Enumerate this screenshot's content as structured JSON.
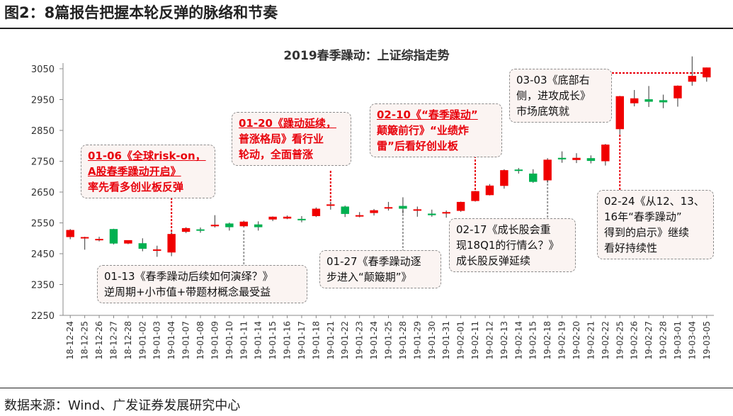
{
  "figure_title": "图2：8篇报告把握本轮反弹的脉络和节奏",
  "source": "数据来源：Wind、广发证券发展研究中心",
  "colors": {
    "up": "#f00000",
    "down": "#00b050",
    "leader": "#e8000b",
    "leader_gray": "#9a9a9a"
  },
  "annotations": [
    {
      "id": "a0106",
      "style": "red",
      "lines": [
        "01-06《全球risk-on，",
        "A股春季躁动开启》",
        "率先看多创业板反弹"
      ]
    },
    {
      "id": "a0113",
      "style": "normal",
      "lines": [
        "01-13《春季躁动后续如何演绎？》",
        "逆周期+小市值+带题材概念最受益"
      ]
    },
    {
      "id": "a0120",
      "style": "red",
      "lines": [
        "01-20《躁动延续，",
        "普涨格局》看行业",
        "轮动，全面普涨"
      ]
    },
    {
      "id": "a0127",
      "style": "normal",
      "lines": [
        "01-27《春季躁动逐",
        "步进入“颠簸期”》"
      ]
    },
    {
      "id": "a0210",
      "style": "red",
      "lines": [
        "02-10《“春季躁动”",
        "颠簸前行》“业绩炸",
        "雷”后看好创业板"
      ]
    },
    {
      "id": "a0217",
      "style": "normal",
      "lines": [
        "02-17《成长股会重",
        "现18Q1的行情么？》",
        "成长股反弹延续"
      ]
    },
    {
      "id": "a0224",
      "style": "normal",
      "lines": [
        "02-24《从12、13、",
        "16年“春季躁动”",
        "得到的启示》继续",
        "看好持续性"
      ]
    },
    {
      "id": "a0303",
      "style": "normal",
      "lines": [
        "03-03《底部右",
        "侧，进攻成长》",
        "市场底筑就"
      ]
    }
  ],
  "chart_data": {
    "type": "candlestick",
    "title": "2019春季躁动：上证综指走势",
    "xlabel": "",
    "ylabel": "",
    "ylim": [
      2250,
      3100
    ],
    "yticks": [
      2250,
      2350,
      2450,
      2550,
      2650,
      2750,
      2850,
      2950,
      3050
    ],
    "grid": false,
    "categories": [
      "18-12-24",
      "18-12-25",
      "18-12-26",
      "18-12-27",
      "18-12-28",
      "19-01-02",
      "19-01-03",
      "19-01-04",
      "19-01-07",
      "19-01-08",
      "19-01-09",
      "19-01-10",
      "19-01-11",
      "19-01-14",
      "19-01-15",
      "19-01-16",
      "19-01-17",
      "19-01-18",
      "19-01-21",
      "19-01-22",
      "19-01-23",
      "19-01-24",
      "19-01-25",
      "19-01-28",
      "19-01-29",
      "19-01-30",
      "19-01-31",
      "19-02-01",
      "19-02-11",
      "19-02-12",
      "19-02-13",
      "19-02-14",
      "19-02-15",
      "19-02-18",
      "19-02-19",
      "19-02-20",
      "19-02-21",
      "19-02-22",
      "19-02-25",
      "19-02-26",
      "19-02-27",
      "19-02-28",
      "19-03-01",
      "19-03-04",
      "19-03-05"
    ],
    "x_tick_labels": [
      "18-12-24",
      "18-12-25",
      "18-12-26",
      "18-12-27",
      "18-12-28",
      "19-01-02",
      "19-01-03",
      "19-01-04",
      "19-01-07",
      "19-01-08",
      "19-01-09",
      "19-01-10",
      "19-01-11",
      "19-01-14",
      "19-01-15",
      "19-01-16",
      "19-01-17",
      "19-01-18",
      "19-01-21",
      "19-01-22",
      "19-01-23",
      "19-01-24",
      "19-01-25",
      "19-01-28",
      "19-01-29",
      "19-01-30",
      "19-01-31",
      "19-02-01",
      "19-02-11",
      "19-02-12",
      "19-02-13",
      "19-02-14",
      "19-02-15",
      "19-02-18",
      "19-02-19",
      "19-02-20",
      "19-02-21",
      "19-02-22",
      "19-02-25",
      "19-02-26",
      "19-02-27",
      "19-02-28",
      "19-03-01",
      "19-03-04",
      "19-03-05"
    ],
    "open": [
      2504,
      2502,
      2496,
      2530,
      2483,
      2484,
      2464,
      2454,
      2521,
      2529,
      2539,
      2548,
      2539,
      2545,
      2561,
      2564,
      2563,
      2572,
      2608,
      2603,
      2571,
      2582,
      2599,
      2605,
      2590,
      2580,
      2583,
      2589,
      2621,
      2640,
      2670,
      2723,
      2710,
      2688,
      2761,
      2754,
      2760,
      2750,
      2854,
      2938,
      2951,
      2948,
      2954,
      3008,
      3022
    ],
    "close": [
      2527,
      2504,
      2498,
      2483,
      2494,
      2466,
      2464,
      2514,
      2533,
      2526,
      2544,
      2536,
      2554,
      2536,
      2570,
      2570,
      2559,
      2596,
      2610,
      2579,
      2575,
      2591,
      2601,
      2596,
      2594,
      2575,
      2585,
      2618,
      2653,
      2671,
      2721,
      2719,
      2683,
      2755,
      2756,
      2761,
      2751,
      2804,
      2961,
      2954,
      2943,
      2941,
      2995,
      3027,
      3054
    ],
    "high": [
      2530,
      2505,
      2505,
      2531,
      2493,
      2500,
      2476,
      2521,
      2536,
      2535,
      2575,
      2551,
      2557,
      2555,
      2571,
      2574,
      2572,
      2600,
      2618,
      2606,
      2585,
      2595,
      2618,
      2633,
      2603,
      2593,
      2590,
      2619,
      2654,
      2676,
      2724,
      2728,
      2724,
      2760,
      2782,
      2776,
      2769,
      2806,
      2962,
      2981,
      2994,
      2966,
      2996,
      3090,
      3054
    ],
    "low": [
      2497,
      2463,
      2490,
      2480,
      2481,
      2458,
      2440,
      2442,
      2517,
      2518,
      2535,
      2525,
      2535,
      2525,
      2556,
      2562,
      2552,
      2569,
      2593,
      2569,
      2568,
      2574,
      2590,
      2580,
      2570,
      2570,
      2567,
      2586,
      2619,
      2639,
      2661,
      2710,
      2680,
      2680,
      2745,
      2744,
      2743,
      2736,
      2837,
      2928,
      2926,
      2922,
      2927,
      2995,
      3008
    ]
  }
}
